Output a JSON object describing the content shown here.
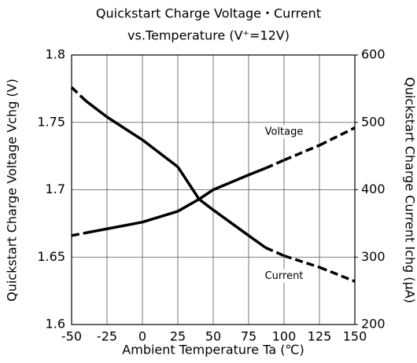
{
  "chart_data": {
    "type": "line",
    "title": "Quickstart Charge Voltage・Current",
    "subtitle": "vs.Temperature (V⁺=12V)",
    "x_label": "Ambient Temperature Ta (℃)",
    "y_label": "Quickstart Charge Voltage Vchg (V)",
    "y2_label": "Quickstart Charge Current Ichg (μA)",
    "x": [
      -50,
      -40,
      -25,
      0,
      25,
      40,
      50,
      75,
      87,
      100,
      125,
      150
    ],
    "series": [
      {
        "name": "Voltage",
        "color": "#000000",
        "values": [
          1.666,
          1.668,
          1.671,
          1.676,
          1.684,
          1.693,
          1.7,
          1.711,
          1.716,
          1.722,
          1.733,
          1.746
        ],
        "segment_styles": [
          "dashed",
          "solid",
          "solid",
          "solid",
          "solid",
          "solid",
          "solid",
          "solid",
          "dashed",
          "dashed",
          "dashed"
        ]
      },
      {
        "name": "Current",
        "color": "#000000",
        "axis": "y2",
        "values": [
          552,
          532,
          508,
          474,
          434,
          386,
          370,
          332,
          314,
          302,
          285,
          264
        ],
        "segment_styles": [
          "dashed",
          "solid",
          "solid",
          "solid",
          "solid",
          "solid",
          "solid",
          "solid",
          "dashed",
          "dashed",
          "dashed"
        ]
      }
    ],
    "xlim": [
      -50,
      150
    ],
    "xticks": [
      -50,
      -25,
      0,
      25,
      50,
      75,
      100,
      125,
      150
    ],
    "ylim": [
      1.6,
      1.8
    ],
    "yticks": [
      1.6,
      1.65,
      1.7,
      1.75,
      1.8
    ],
    "y2lim": [
      200,
      600
    ],
    "y2ticks": [
      200,
      300,
      400,
      500,
      600
    ],
    "grid": true
  }
}
